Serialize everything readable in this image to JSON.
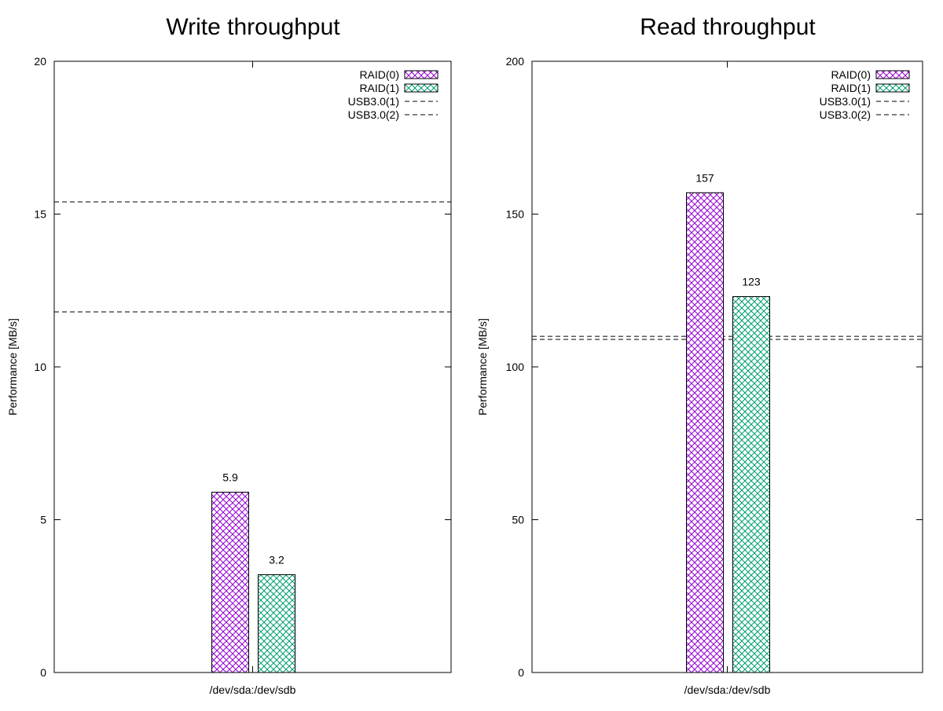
{
  "chart_data": [
    {
      "type": "bar",
      "title": "Write throughput",
      "ylabel": "Performance [MB/s]",
      "ylim": [
        0,
        20
      ],
      "yticks": [
        0,
        5,
        10,
        15,
        20
      ],
      "categories": [
        "/dev/sda:/dev/sdb"
      ],
      "series": [
        {
          "name": "RAID(0)",
          "values": [
            5.9
          ],
          "value_labels": [
            "5.9"
          ],
          "color": "#9400d3"
        },
        {
          "name": "RAID(1)",
          "values": [
            3.2
          ],
          "value_labels": [
            "3.2"
          ],
          "color": "#009e73"
        }
      ],
      "reference_lines": [
        {
          "name": "USB3.0(1)",
          "value": 11.8,
          "style": "dashed",
          "color": "#000000"
        },
        {
          "name": "USB3.0(2)",
          "value": 15.4,
          "style": "dashed",
          "color": "#000000"
        }
      ],
      "legend": "top-right",
      "grid": false
    },
    {
      "type": "bar",
      "title": "Read throughput",
      "ylabel": "Performance [MB/s]",
      "ylim": [
        0,
        200
      ],
      "yticks": [
        0,
        50,
        100,
        150,
        200
      ],
      "categories": [
        "/dev/sda:/dev/sdb"
      ],
      "series": [
        {
          "name": "RAID(0)",
          "values": [
            157
          ],
          "value_labels": [
            "157"
          ],
          "color": "#9400d3"
        },
        {
          "name": "RAID(1)",
          "values": [
            123
          ],
          "value_labels": [
            "123"
          ],
          "color": "#009e73"
        }
      ],
      "reference_lines": [
        {
          "name": "USB3.0(1)",
          "value": 109,
          "style": "dashed",
          "color": "#000000"
        },
        {
          "name": "USB3.0(2)",
          "value": 110,
          "style": "dashed",
          "color": "#000000"
        }
      ],
      "legend": "top-right",
      "grid": false
    }
  ]
}
